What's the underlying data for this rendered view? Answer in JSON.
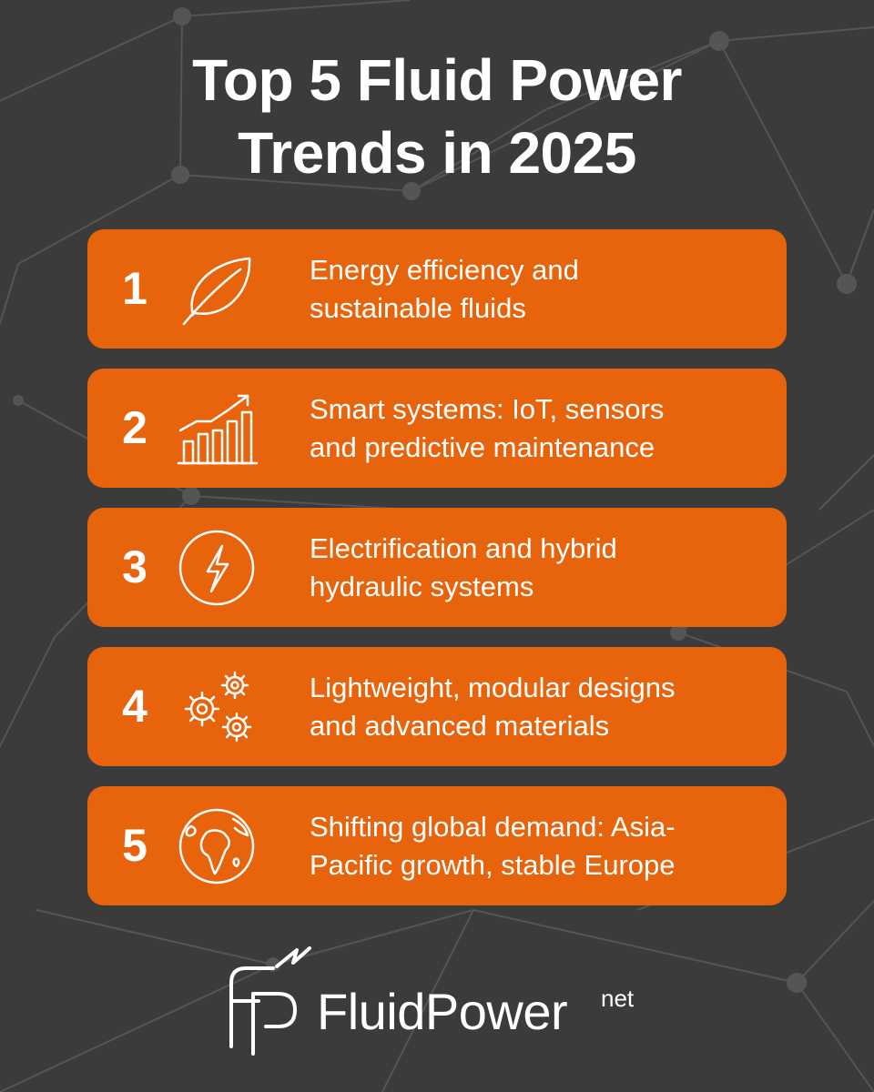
{
  "title": {
    "line1": "Top 5 Fluid Power",
    "line2": "Trends in 2025"
  },
  "trends": [
    {
      "number": "1",
      "icon": "leaf-icon",
      "line1": "Energy efficiency and",
      "line2": "sustainable fluids"
    },
    {
      "number": "2",
      "icon": "growth-chart-icon",
      "line1": "Smart systems: IoT, sensors",
      "line2": "and predictive maintenance"
    },
    {
      "number": "3",
      "icon": "lightning-bolt-icon",
      "line1": "Electrification and hybrid",
      "line2": "hydraulic systems"
    },
    {
      "number": "4",
      "icon": "gears-icon",
      "line1": "Lightweight, modular designs",
      "line2": "and advanced materials"
    },
    {
      "number": "5",
      "icon": "globe-icon",
      "line1": "Shifting global demand: Asia-",
      "line2": "Pacific growth, stable Europe"
    }
  ],
  "logo": {
    "name": "FluidPower",
    "suffix": "net"
  },
  "colors": {
    "background": "#3b3b3b",
    "card": "#e8640c",
    "text": "#ffffff",
    "network_lines": "#555555"
  }
}
